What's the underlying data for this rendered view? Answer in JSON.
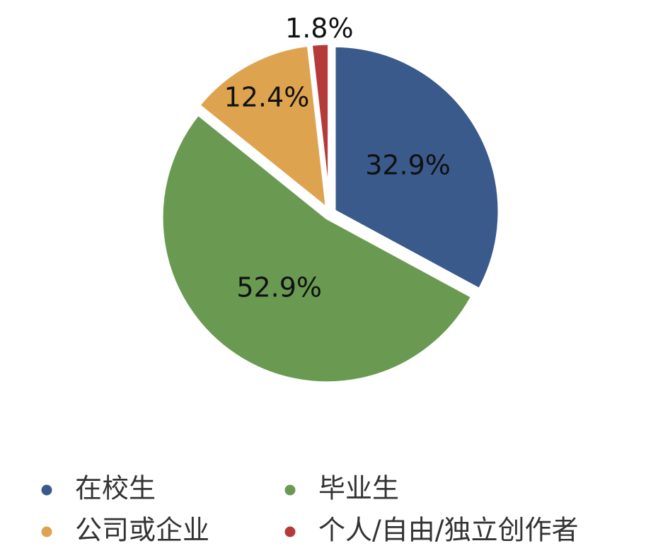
{
  "chart_data": {
    "type": "pie",
    "categories": [
      "在校生",
      "毕业生",
      "公司或企业",
      "个人/自由/独立创作者"
    ],
    "values": [
      32.9,
      52.9,
      12.4,
      1.8
    ],
    "value_labels": [
      "32.9%",
      "52.9%",
      "12.4%",
      "1.8%"
    ],
    "colors": [
      "#3a5a8b",
      "#6a9a52",
      "#dda34f",
      "#b53a3a"
    ],
    "legend": "bottom"
  }
}
